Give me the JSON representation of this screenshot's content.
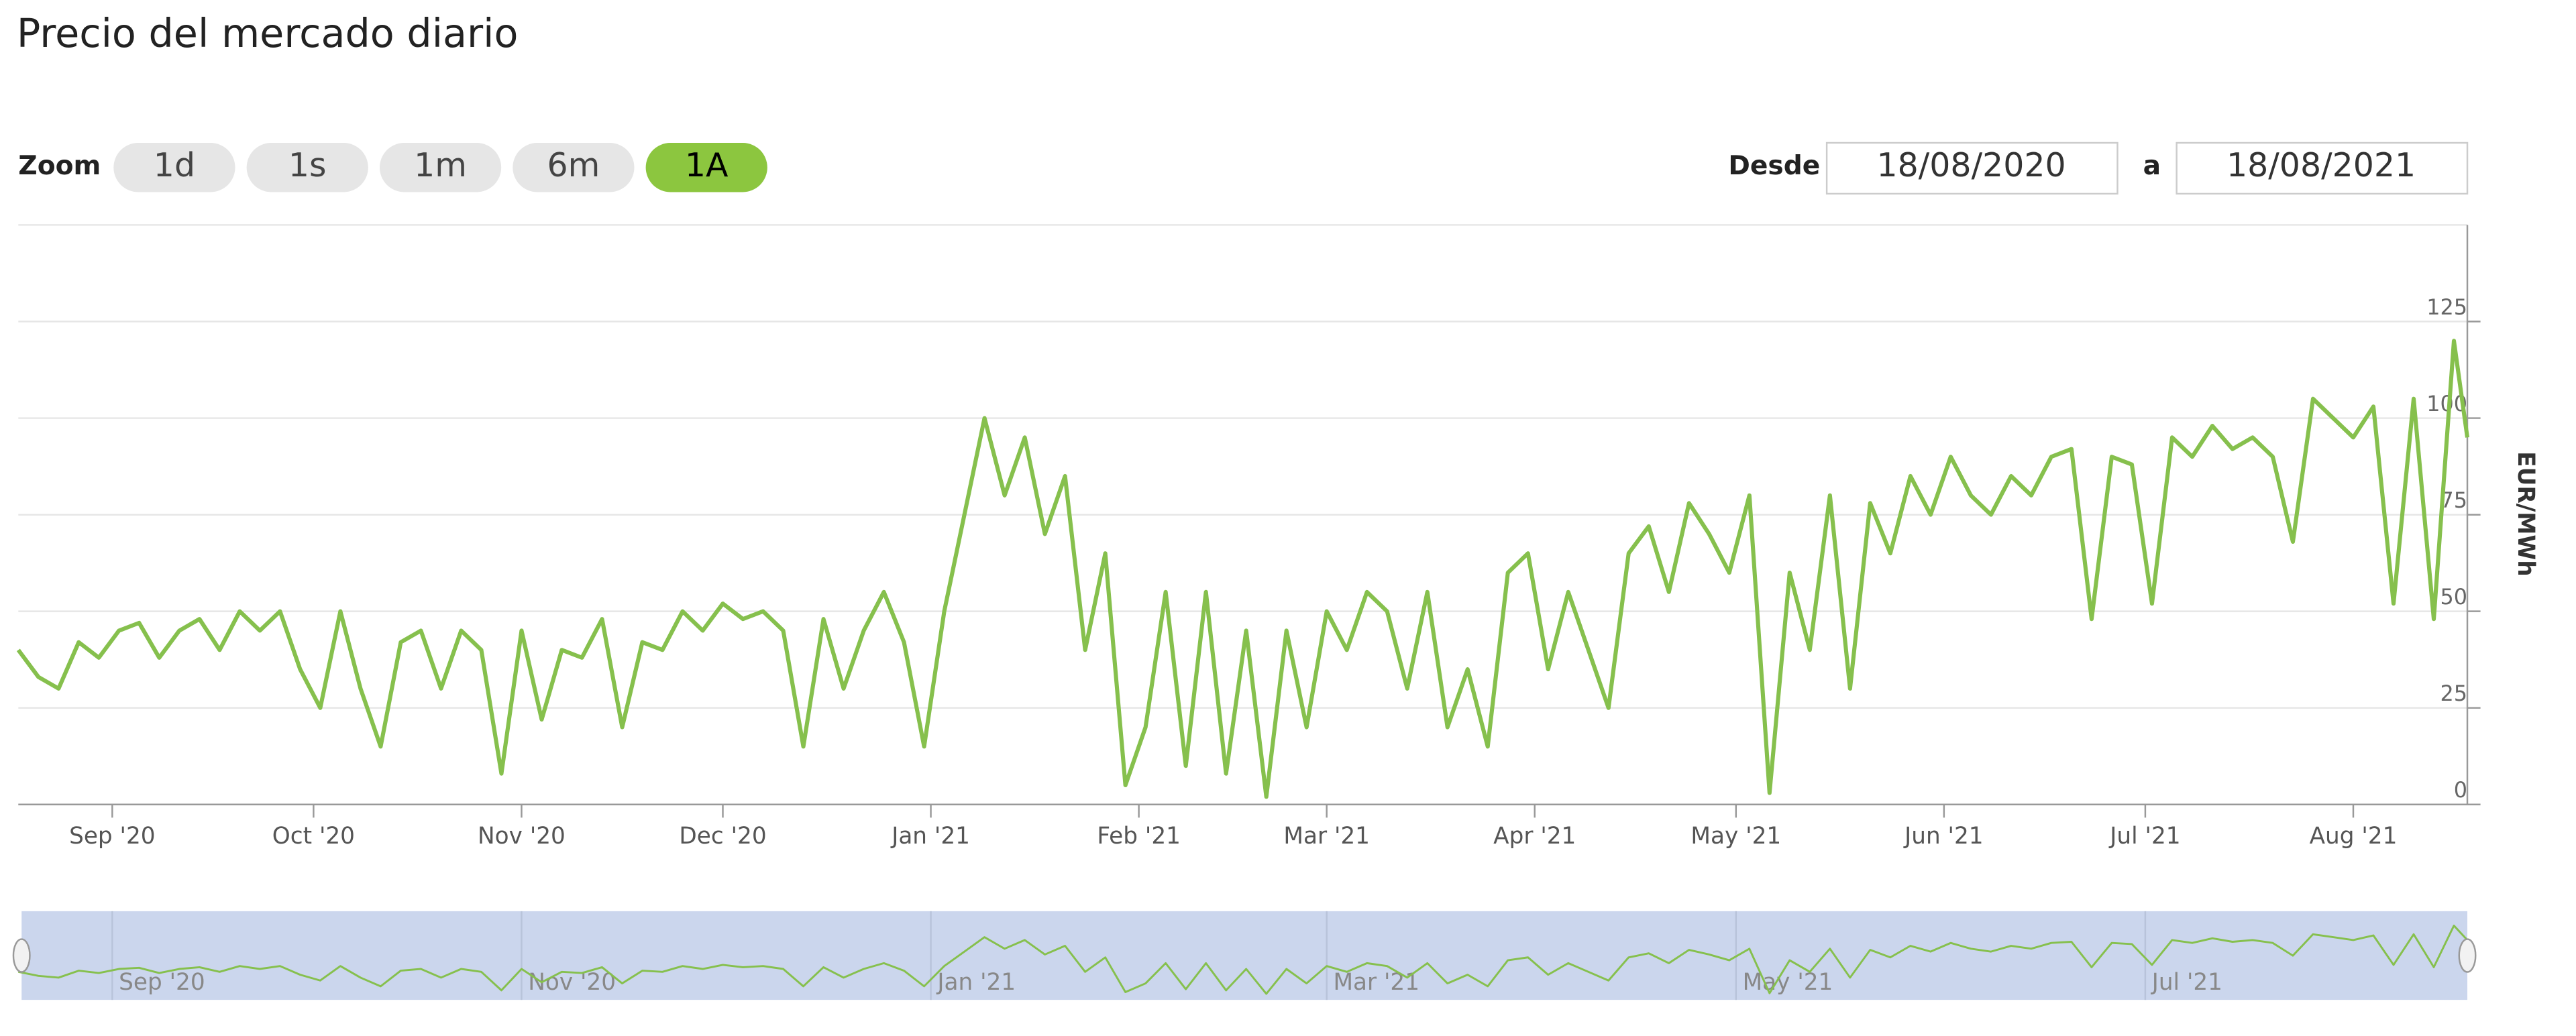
{
  "page": {
    "title": "Precio del mercado diario",
    "zoom_label": "Zoom",
    "buttons": [
      "1d",
      "1s",
      "1m",
      "6m",
      "1A"
    ],
    "selected_button": 4,
    "from_label": "Desde",
    "from_date": "18/08/2020",
    "to_label": "a",
    "to_date": "18/08/2021"
  },
  "chart_data": {
    "type": "line",
    "y_label": "EUR/MWh",
    "xlim": [
      "2020-08-18",
      "2021-08-18"
    ],
    "ylim": [
      0,
      150
    ],
    "yticks": [
      0,
      25,
      50,
      75,
      100,
      125
    ],
    "grid": true,
    "xticks": [
      {
        "value": "2020-09-01",
        "label": "Sep '20"
      },
      {
        "value": "2020-10-01",
        "label": "Oct '20"
      },
      {
        "value": "2020-11-01",
        "label": "Nov '20"
      },
      {
        "value": "2020-12-01",
        "label": "Dec '20"
      },
      {
        "value": "2021-01-01",
        "label": "Jan '21"
      },
      {
        "value": "2021-02-01",
        "label": "Feb '21"
      },
      {
        "value": "2021-03-01",
        "label": "Mar '21"
      },
      {
        "value": "2021-04-01",
        "label": "Apr '21"
      },
      {
        "value": "2021-05-01",
        "label": "May '21"
      },
      {
        "value": "2021-06-01",
        "label": "Jun '21"
      },
      {
        "value": "2021-07-01",
        "label": "Jul '21"
      },
      {
        "value": "2021-08-01",
        "label": "Aug '21"
      }
    ],
    "navigator_xticks": [
      {
        "value": "2020-09-01",
        "label": "Sep '20"
      },
      {
        "value": "2020-11-01",
        "label": "Nov '20"
      },
      {
        "value": "2021-01-01",
        "label": "Jan '21"
      },
      {
        "value": "2021-03-01",
        "label": "Mar '21"
      },
      {
        "value": "2021-05-01",
        "label": "May '21"
      },
      {
        "value": "2021-07-01",
        "label": "Jul '21"
      }
    ],
    "x": [
      "2020-08-18",
      "2020-08-21",
      "2020-08-24",
      "2020-08-27",
      "2020-08-30",
      "2020-09-02",
      "2020-09-05",
      "2020-09-08",
      "2020-09-11",
      "2020-09-14",
      "2020-09-17",
      "2020-09-20",
      "2020-09-23",
      "2020-09-26",
      "2020-09-29",
      "2020-10-02",
      "2020-10-05",
      "2020-10-08",
      "2020-10-11",
      "2020-10-14",
      "2020-10-17",
      "2020-10-20",
      "2020-10-23",
      "2020-10-26",
      "2020-10-29",
      "2020-11-01",
      "2020-11-04",
      "2020-11-07",
      "2020-11-10",
      "2020-11-13",
      "2020-11-16",
      "2020-11-19",
      "2020-11-22",
      "2020-11-25",
      "2020-11-28",
      "2020-12-01",
      "2020-12-04",
      "2020-12-07",
      "2020-12-10",
      "2020-12-13",
      "2020-12-16",
      "2020-12-19",
      "2020-12-22",
      "2020-12-25",
      "2020-12-28",
      "2020-12-31",
      "2021-01-03",
      "2021-01-06",
      "2021-01-09",
      "2021-01-12",
      "2021-01-15",
      "2021-01-18",
      "2021-01-21",
      "2021-01-24",
      "2021-01-27",
      "2021-01-30",
      "2021-02-02",
      "2021-02-05",
      "2021-02-08",
      "2021-02-11",
      "2021-02-14",
      "2021-02-17",
      "2021-02-20",
      "2021-02-23",
      "2021-02-26",
      "2021-03-01",
      "2021-03-04",
      "2021-03-07",
      "2021-03-10",
      "2021-03-13",
      "2021-03-16",
      "2021-03-19",
      "2021-03-22",
      "2021-03-25",
      "2021-03-28",
      "2021-03-31",
      "2021-04-03",
      "2021-04-06",
      "2021-04-09",
      "2021-04-12",
      "2021-04-15",
      "2021-04-18",
      "2021-04-21",
      "2021-04-24",
      "2021-04-27",
      "2021-04-30",
      "2021-05-03",
      "2021-05-06",
      "2021-05-09",
      "2021-05-12",
      "2021-05-15",
      "2021-05-18",
      "2021-05-21",
      "2021-05-24",
      "2021-05-27",
      "2021-05-30",
      "2021-06-02",
      "2021-06-05",
      "2021-06-08",
      "2021-06-11",
      "2021-06-14",
      "2021-06-17",
      "2021-06-20",
      "2021-06-23",
      "2021-06-26",
      "2021-06-29",
      "2021-07-02",
      "2021-07-05",
      "2021-07-08",
      "2021-07-11",
      "2021-07-14",
      "2021-07-17",
      "2021-07-20",
      "2021-07-23",
      "2021-07-26",
      "2021-07-29",
      "2021-08-01",
      "2021-08-04",
      "2021-08-07",
      "2021-08-10",
      "2021-08-13",
      "2021-08-16",
      "2021-08-18"
    ],
    "series": [
      {
        "name": "Precio",
        "color": "#86c04d",
        "values": [
          40,
          33,
          30,
          42,
          38,
          45,
          47,
          38,
          45,
          48,
          40,
          50,
          45,
          50,
          35,
          25,
          50,
          30,
          15,
          42,
          45,
          30,
          45,
          40,
          8,
          45,
          22,
          40,
          38,
          48,
          20,
          42,
          40,
          50,
          45,
          52,
          48,
          50,
          45,
          15,
          48,
          30,
          45,
          55,
          42,
          15,
          50,
          75,
          100,
          80,
          95,
          70,
          85,
          40,
          65,
          5,
          20,
          55,
          10,
          55,
          8,
          45,
          2,
          45,
          20,
          50,
          40,
          55,
          50,
          30,
          55,
          20,
          35,
          15,
          60,
          65,
          35,
          55,
          40,
          25,
          65,
          72,
          55,
          78,
          70,
          60,
          80,
          3,
          60,
          40,
          80,
          30,
          78,
          65,
          85,
          75,
          90,
          80,
          75,
          85,
          80,
          90,
          92,
          48,
          90,
          88,
          52,
          95,
          90,
          98,
          92,
          95,
          90,
          68,
          105,
          100,
          95,
          103,
          52,
          105,
          48,
          120,
          95
        ]
      }
    ]
  }
}
